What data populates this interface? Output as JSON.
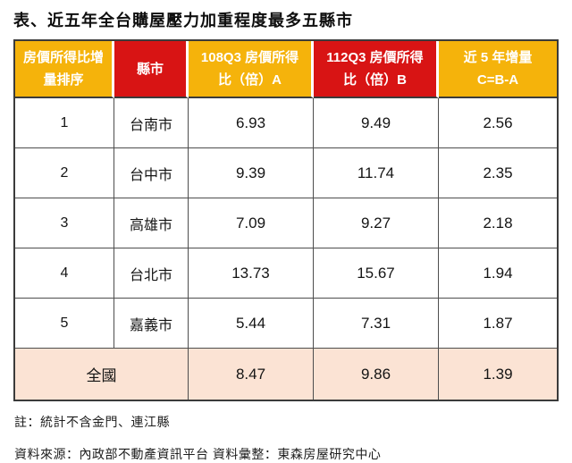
{
  "title": "表、近五年全台購屋壓力加重程度最多五縣市",
  "colors": {
    "header_yellow": "#F5B30B",
    "header_red": "#D81414",
    "summary_row_bg": "#FBE3D4",
    "header_text": "#FFFFFF",
    "body_text": "#141414",
    "table_border": "#3B3B3B"
  },
  "table": {
    "headers": [
      {
        "lines": [
          "房價所得比增",
          "量排序"
        ]
      },
      {
        "lines": [
          "縣市"
        ]
      },
      {
        "lines": [
          "108Q3 房價所得",
          "比（倍）A"
        ]
      },
      {
        "lines": [
          "112Q3 房價所得",
          "比（倍）B"
        ]
      },
      {
        "lines": [
          "近 5 年增量",
          "C=B-A"
        ]
      }
    ],
    "rows": [
      {
        "rank": "1",
        "city": "台南市",
        "a": "6.93",
        "b": "9.49",
        "c": "2.56"
      },
      {
        "rank": "2",
        "city": "台中市",
        "a": "9.39",
        "b": "11.74",
        "c": "2.35"
      },
      {
        "rank": "3",
        "city": "高雄市",
        "a": "7.09",
        "b": "9.27",
        "c": "2.18"
      },
      {
        "rank": "4",
        "city": "台北市",
        "a": "13.73",
        "b": "15.67",
        "c": "1.94"
      },
      {
        "rank": "5",
        "city": "嘉義市",
        "a": "5.44",
        "b": "7.31",
        "c": "1.87"
      }
    ],
    "summary": {
      "label": "全國",
      "a": "8.47",
      "b": "9.86",
      "c": "1.39"
    }
  },
  "notes": {
    "note": "註：統計不含金門、連江縣",
    "source": "資料來源：內政部不動產資訊平台 資料彙整：東森房屋研究中心"
  },
  "chart_data": {
    "type": "table",
    "title": "表、近五年全台購屋壓力加重程度最多五縣市",
    "columns": [
      "房價所得比增量排序",
      "縣市",
      "108Q3 房價所得比（倍）A",
      "112Q3 房價所得比（倍）B",
      "近 5 年增量 C=B-A"
    ],
    "rows": [
      [
        "1",
        "台南市",
        6.93,
        9.49,
        2.56
      ],
      [
        "2",
        "台中市",
        9.39,
        11.74,
        2.35
      ],
      [
        "3",
        "高雄市",
        7.09,
        9.27,
        2.18
      ],
      [
        "4",
        "台北市",
        13.73,
        15.67,
        1.94
      ],
      [
        "5",
        "嘉義市",
        5.44,
        7.31,
        1.87
      ],
      [
        "",
        "全國",
        8.47,
        9.86,
        1.39
      ]
    ],
    "notes": [
      "註：統計不含金門、連江縣",
      "資料來源：內政部不動產資訊平台 資料彙整：東森房屋研究中心"
    ]
  }
}
